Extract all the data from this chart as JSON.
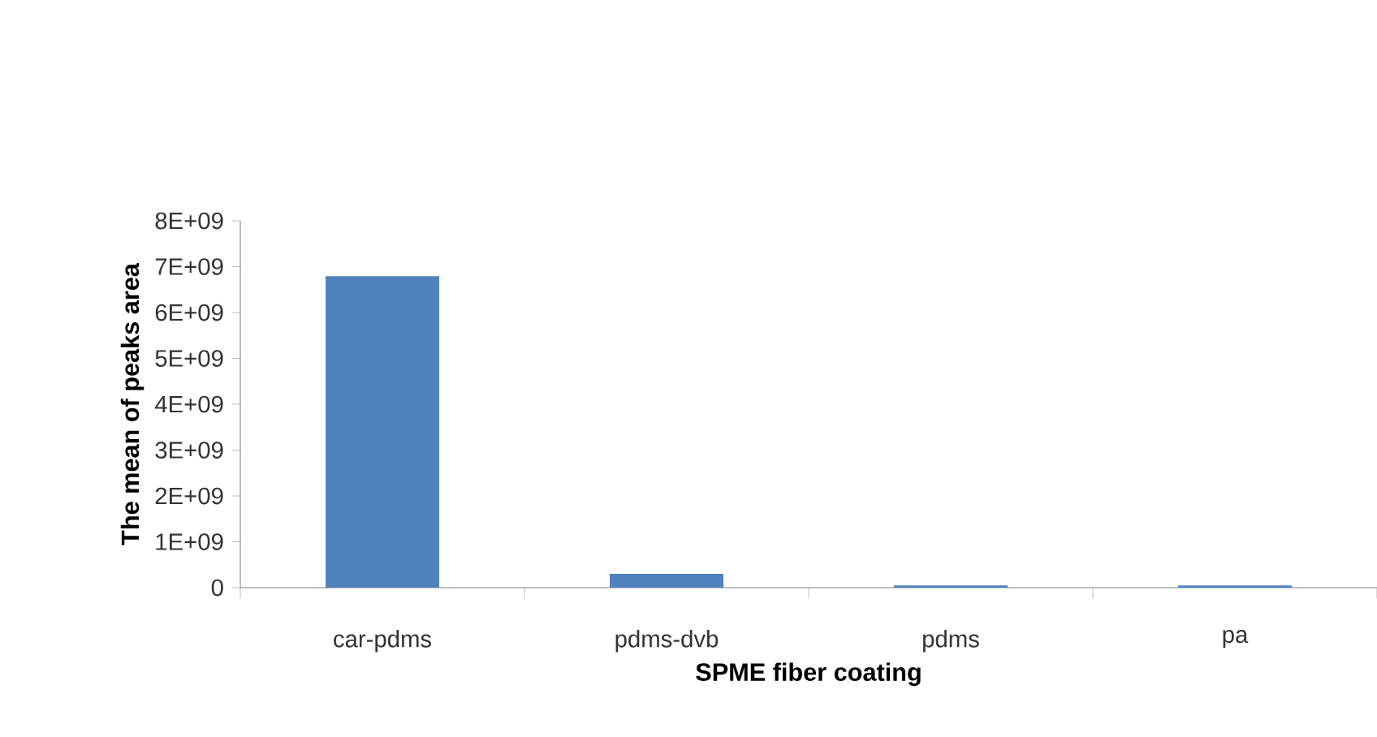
{
  "chart_data": {
    "type": "bar",
    "xlabel": "SPME fiber  coating",
    "ylabel": "The mean of peaks area",
    "categories": [
      "car-pdms",
      "pdms-dvb",
      "pdms",
      "pa"
    ],
    "values": [
      6790000000.0,
      300000000.0,
      50000000.0,
      50000000.0
    ],
    "color": "#4f81bd",
    "ylim": [
      0,
      8000000000.0
    ],
    "yticks": [
      {
        "value": 0,
        "label": "0"
      },
      {
        "value": 1000000000.0,
        "label": "1E+09"
      },
      {
        "value": 2000000000.0,
        "label": "2E+09"
      },
      {
        "value": 3000000000.0,
        "label": "3E+09"
      },
      {
        "value": 4000000000.0,
        "label": "4E+09"
      },
      {
        "value": 5000000000.0,
        "label": "5E+09"
      },
      {
        "value": 6000000000.0,
        "label": "6E+09"
      },
      {
        "value": 7000000000.0,
        "label": "7E+09"
      },
      {
        "value": 8000000000.0,
        "label": "8E+09"
      }
    ],
    "grid": false
  }
}
